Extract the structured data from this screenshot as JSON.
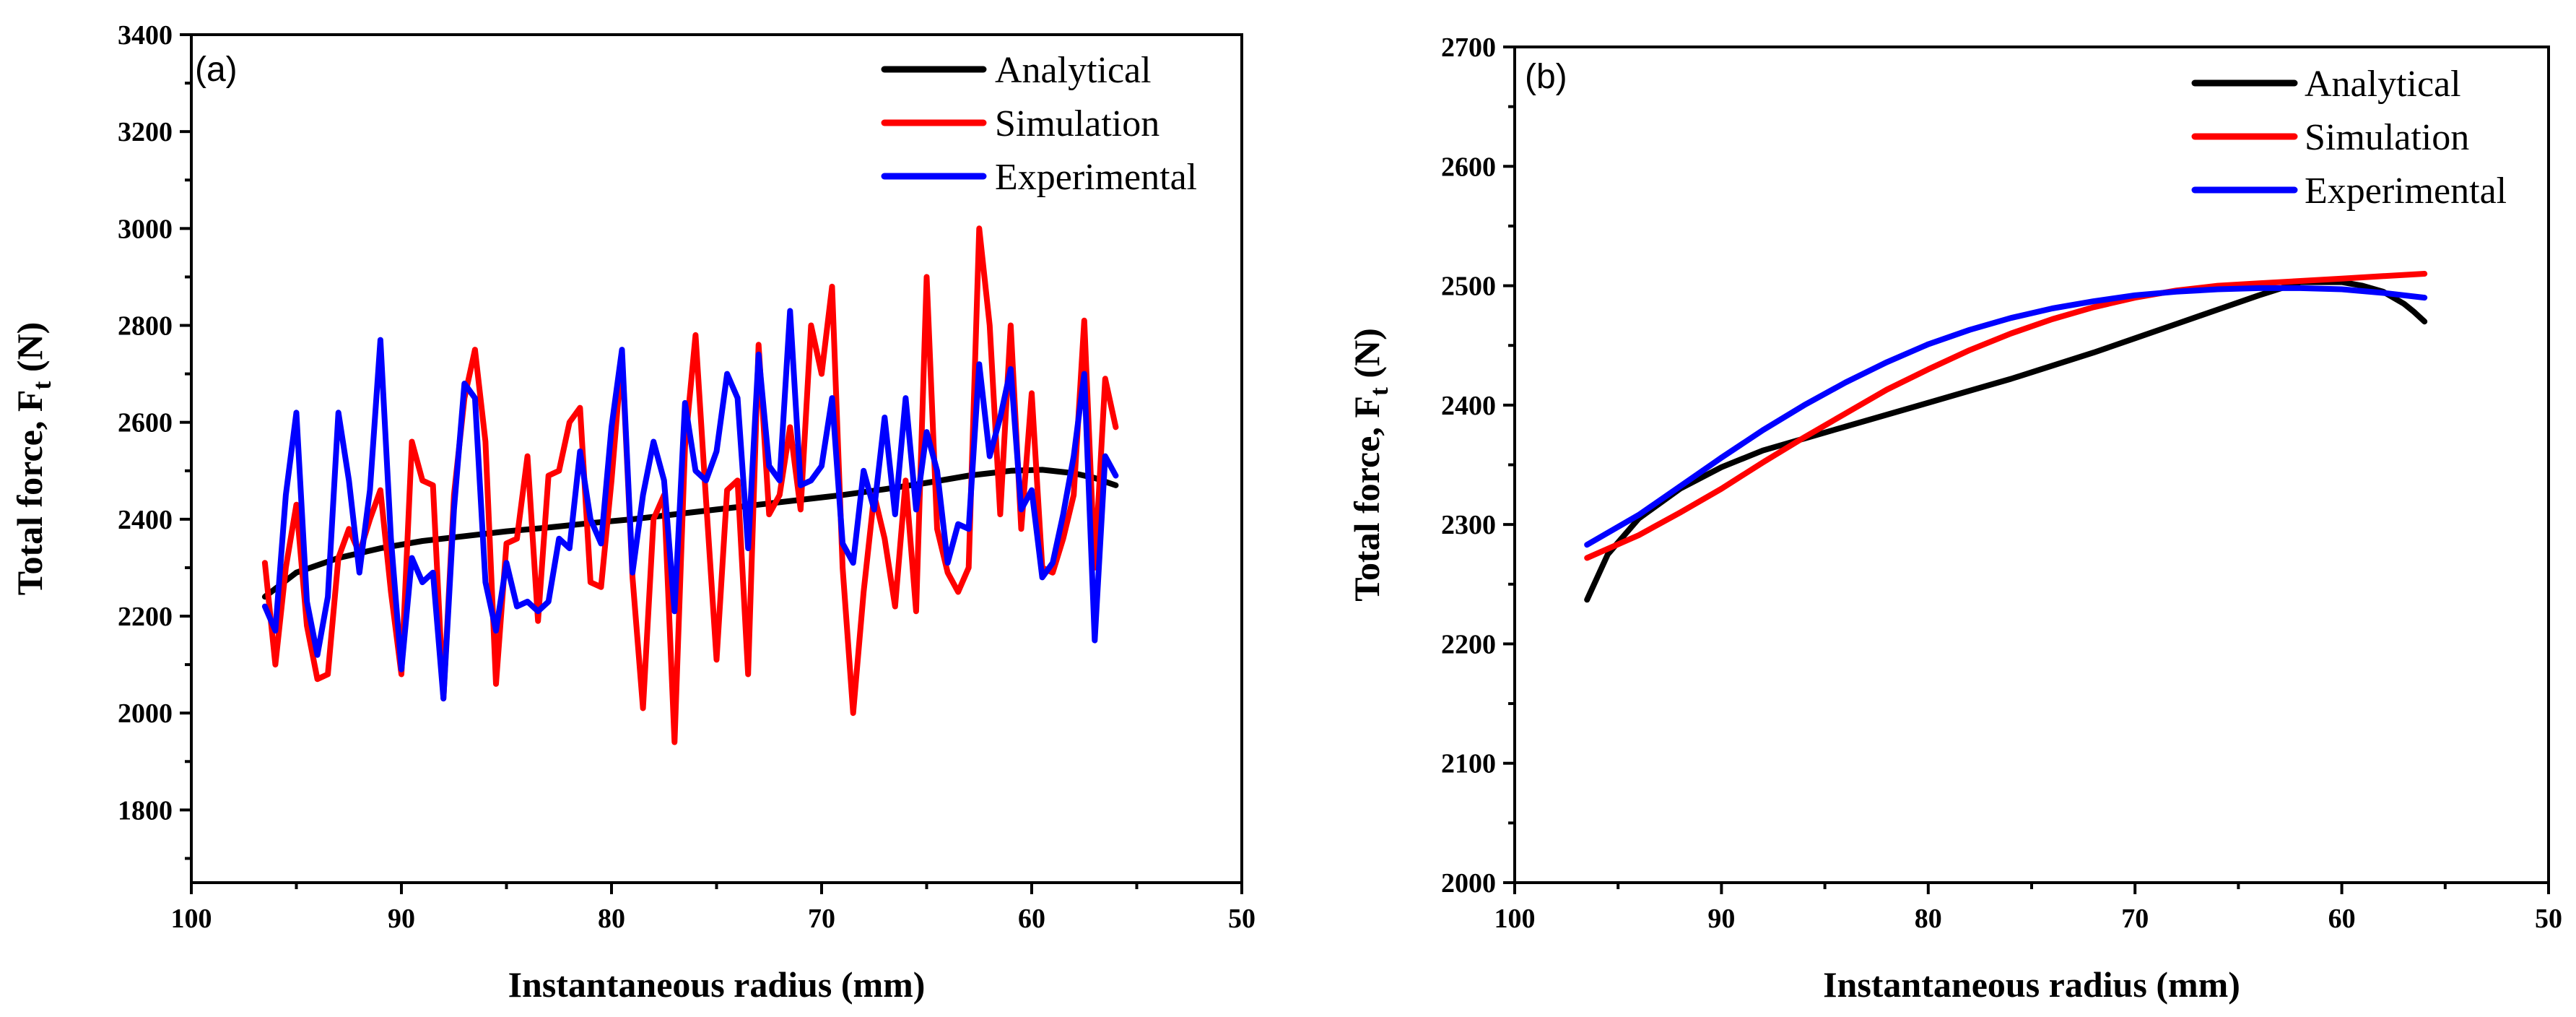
{
  "chart_data": [
    {
      "type": "line",
      "panel_label": "(a)",
      "xlabel": "Instantaneous radius (mm)",
      "ylabel_main": "Total force, F",
      "ylabel_sub": "t",
      "ylabel_unit": " (N)",
      "xlim": [
        100,
        50
      ],
      "ylim": [
        1650,
        3400
      ],
      "xticks": [
        100,
        90,
        80,
        70,
        60,
        50
      ],
      "yticks": [
        1800,
        2000,
        2200,
        2400,
        2600,
        2800,
        3000,
        3200,
        3400
      ],
      "legend_position": "top-right",
      "series": [
        {
          "name": "Analytical",
          "color": "#000000",
          "x": [
            96.5,
            95,
            93,
            91,
            89,
            87,
            85,
            83,
            81,
            79,
            77,
            75,
            73,
            71,
            69,
            67,
            65,
            63,
            61,
            59.5,
            58,
            57,
            56
          ],
          "y": [
            2240,
            2290,
            2320,
            2340,
            2355,
            2365,
            2375,
            2383,
            2392,
            2400,
            2410,
            2420,
            2430,
            2440,
            2450,
            2462,
            2475,
            2490,
            2500,
            2502,
            2495,
            2485,
            2470
          ]
        },
        {
          "name": "Simulation",
          "color": "#ff0000",
          "x": [
            96.5,
            96,
            95.5,
            95,
            94.5,
            94,
            93.5,
            93,
            92.5,
            92,
            91.5,
            91,
            90.5,
            90,
            89.5,
            89,
            88.5,
            88,
            87.5,
            87,
            86.5,
            86,
            85.5,
            85,
            84.5,
            84,
            83.5,
            83,
            82.5,
            82,
            81.5,
            81,
            80.5,
            80,
            79.5,
            79,
            78.5,
            78,
            77.5,
            77,
            76.5,
            76,
            75.5,
            75,
            74.5,
            74,
            73.5,
            73,
            72.5,
            72,
            71.5,
            71,
            70.5,
            70,
            69.5,
            69,
            68.5,
            68,
            67.5,
            67,
            66.5,
            66,
            65.5,
            65,
            64.5,
            64,
            63.5,
            63,
            62.5,
            62,
            61.5,
            61,
            60.5,
            60,
            59.5,
            59,
            58.5,
            58,
            57.5,
            57,
            56.5,
            56
          ],
          "y": [
            2310,
            2100,
            2300,
            2430,
            2180,
            2070,
            2080,
            2320,
            2380,
            2330,
            2400,
            2460,
            2250,
            2080,
            2560,
            2480,
            2470,
            2030,
            2450,
            2650,
            2750,
            2560,
            2060,
            2350,
            2360,
            2530,
            2190,
            2490,
            2500,
            2600,
            2630,
            2270,
            2260,
            2480,
            2740,
            2280,
            2010,
            2400,
            2450,
            1940,
            2550,
            2780,
            2440,
            2110,
            2460,
            2480,
            2080,
            2760,
            2410,
            2450,
            2590,
            2420,
            2800,
            2700,
            2880,
            2300,
            2000,
            2250,
            2450,
            2360,
            2220,
            2480,
            2210,
            2900,
            2380,
            2290,
            2250,
            2300,
            3000,
            2800,
            2410,
            2800,
            2380,
            2660,
            2300,
            2290,
            2360,
            2450,
            2810,
            2300,
            2690,
            2590
          ]
        },
        {
          "name": "Experimental",
          "color": "#0000ff",
          "x": [
            96.5,
            96,
            95.5,
            95,
            94.5,
            94,
            93.5,
            93,
            92.5,
            92,
            91.5,
            91,
            90.5,
            90,
            89.5,
            89,
            88.5,
            88,
            87.5,
            87,
            86.5,
            86,
            85.5,
            85,
            84.5,
            84,
            83.5,
            83,
            82.5,
            82,
            81.5,
            81,
            80.5,
            80,
            79.5,
            79,
            78.5,
            78,
            77.5,
            77,
            76.5,
            76,
            75.5,
            75,
            74.5,
            74,
            73.5,
            73,
            72.5,
            72,
            71.5,
            71,
            70.5,
            70,
            69.5,
            69,
            68.5,
            68,
            67.5,
            67,
            66.5,
            66,
            65.5,
            65,
            64.5,
            64,
            63.5,
            63,
            62.5,
            62,
            61.5,
            61,
            60.5,
            60,
            59.5,
            59,
            58.5,
            58,
            57.5,
            57,
            56.5,
            56
          ],
          "y": [
            2220,
            2170,
            2450,
            2620,
            2230,
            2120,
            2240,
            2620,
            2480,
            2290,
            2460,
            2770,
            2360,
            2090,
            2320,
            2270,
            2290,
            2030,
            2420,
            2680,
            2650,
            2270,
            2170,
            2310,
            2220,
            2230,
            2210,
            2230,
            2360,
            2340,
            2540,
            2400,
            2350,
            2590,
            2750,
            2290,
            2450,
            2560,
            2480,
            2210,
            2640,
            2500,
            2480,
            2540,
            2700,
            2650,
            2340,
            2740,
            2510,
            2480,
            2830,
            2470,
            2480,
            2510,
            2650,
            2350,
            2310,
            2500,
            2420,
            2610,
            2410,
            2650,
            2420,
            2580,
            2500,
            2310,
            2390,
            2380,
            2720,
            2530,
            2610,
            2710,
            2420,
            2460,
            2280,
            2310,
            2410,
            2530,
            2700,
            2150,
            2530,
            2490
          ]
        }
      ]
    },
    {
      "type": "line",
      "panel_label": "(b)",
      "xlabel": "Instantaneous radius (mm)",
      "ylabel_main": "Total force, F",
      "ylabel_sub": "t",
      "ylabel_unit": " (N)",
      "xlim": [
        100,
        50
      ],
      "ylim": [
        2000,
        2700
      ],
      "xticks": [
        100,
        90,
        80,
        70,
        60,
        50
      ],
      "yticks": [
        2000,
        2100,
        2200,
        2300,
        2400,
        2500,
        2600,
        2700
      ],
      "legend_position": "top-right",
      "series": [
        {
          "name": "Analytical",
          "color": "#000000",
          "x": [
            96.5,
            95.5,
            94,
            92,
            90,
            88,
            86,
            84,
            82,
            80,
            78,
            76,
            74,
            72,
            70,
            68,
            66,
            64,
            62,
            60,
            59,
            58,
            57,
            56.5,
            56
          ],
          "y": [
            2237,
            2275,
            2305,
            2330,
            2348,
            2362,
            2372,
            2382,
            2392,
            2402,
            2412,
            2422,
            2433,
            2444,
            2456,
            2468,
            2480,
            2492,
            2503,
            2503,
            2500,
            2495,
            2485,
            2478,
            2470
          ]
        },
        {
          "name": "Simulation",
          "color": "#ff0000",
          "x": [
            96.5,
            94,
            92,
            90,
            88,
            86,
            84,
            82,
            80,
            78,
            76,
            74,
            72,
            70,
            68,
            66,
            64,
            62,
            60,
            58,
            56
          ],
          "y": [
            2272,
            2291,
            2310,
            2330,
            2352,
            2373,
            2393,
            2413,
            2430,
            2446,
            2460,
            2472,
            2482,
            2490,
            2496,
            2500,
            2502,
            2504,
            2506,
            2508,
            2510
          ]
        },
        {
          "name": "Experimental",
          "color": "#0000ff",
          "x": [
            96.5,
            94,
            92,
            90,
            88,
            86,
            84,
            82,
            80,
            78,
            76,
            74,
            72,
            70,
            68,
            66,
            64,
            62,
            60,
            58,
            56
          ],
          "y": [
            2283,
            2308,
            2332,
            2356,
            2379,
            2400,
            2419,
            2436,
            2451,
            2463,
            2473,
            2481,
            2487,
            2492,
            2495,
            2497,
            2498,
            2498,
            2497,
            2494,
            2490
          ]
        }
      ]
    }
  ]
}
